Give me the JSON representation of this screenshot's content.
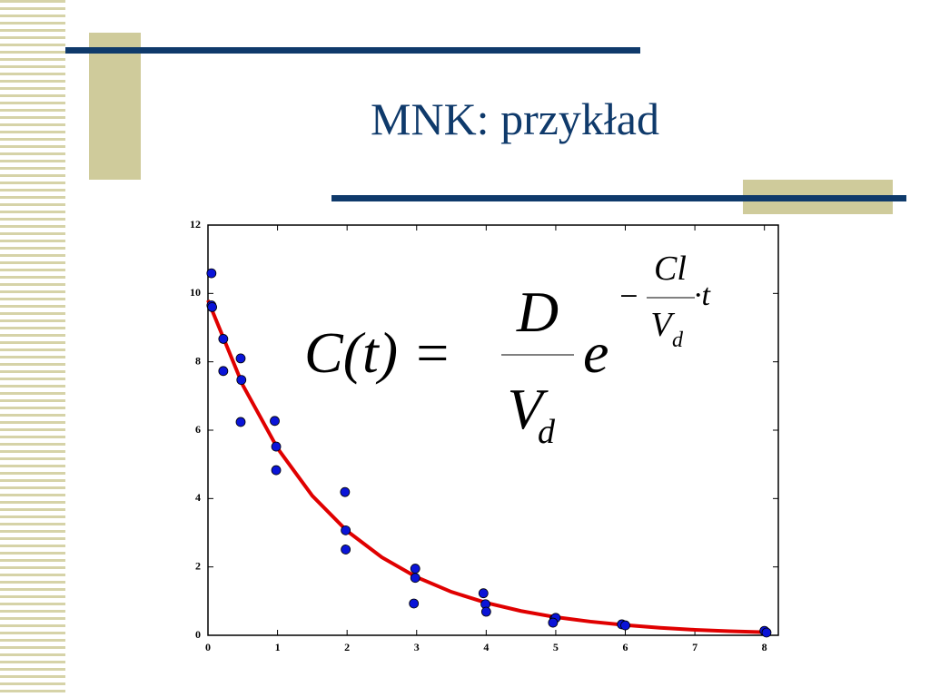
{
  "slide": {
    "title": "MNK: przykład"
  },
  "formula": {
    "lhs": "C(t) =",
    "numerator": "D",
    "denominator": "V",
    "denominator_sub": "d",
    "base": "e",
    "exp_sign": "−",
    "exp_numerator": "Cl",
    "exp_denominator": "V",
    "exp_denominator_sub": "d",
    "exp_tail": "·t"
  },
  "chart_data": {
    "type": "scatter",
    "xlim": [
      0,
      8.2
    ],
    "ylim": [
      0,
      12
    ],
    "xticks": [
      0,
      1,
      2,
      3,
      4,
      5,
      6,
      7,
      8
    ],
    "yticks": [
      0,
      2,
      4,
      6,
      8,
      10,
      12
    ],
    "grid": false,
    "series": [
      {
        "type": "line",
        "color": "#e00000",
        "x": [
          0,
          0.5,
          1,
          1.5,
          2,
          2.5,
          3,
          3.5,
          4,
          4.5,
          5,
          5.5,
          6,
          6.5,
          7,
          7.5,
          8
        ],
        "values": [
          9.8,
          7.32,
          5.47,
          4.08,
          3.05,
          2.28,
          1.7,
          1.27,
          0.95,
          0.71,
          0.53,
          0.4,
          0.3,
          0.22,
          0.16,
          0.12,
          0.09
        ]
      },
      {
        "type": "scatter",
        "color": "#0a14d8",
        "x": [
          0.05,
          0.05,
          0.06,
          0.22,
          0.22,
          0.47,
          0.48,
          0.47,
          0.96,
          0.98,
          0.98,
          1.97,
          1.98,
          1.98,
          2.98,
          2.98,
          2.96,
          3.96,
          3.99,
          4.0,
          4.98,
          5.0,
          4.96,
          5.95,
          6.0,
          8.0,
          8.03
        ],
        "values": [
          10.59,
          9.65,
          9.6,
          8.67,
          7.73,
          8.1,
          7.47,
          6.24,
          6.27,
          5.52,
          4.83,
          4.19,
          3.07,
          2.51,
          1.95,
          1.68,
          0.93,
          1.23,
          0.91,
          0.69,
          0.48,
          0.51,
          0.37,
          0.32,
          0.29,
          0.13,
          0.08
        ]
      }
    ]
  }
}
